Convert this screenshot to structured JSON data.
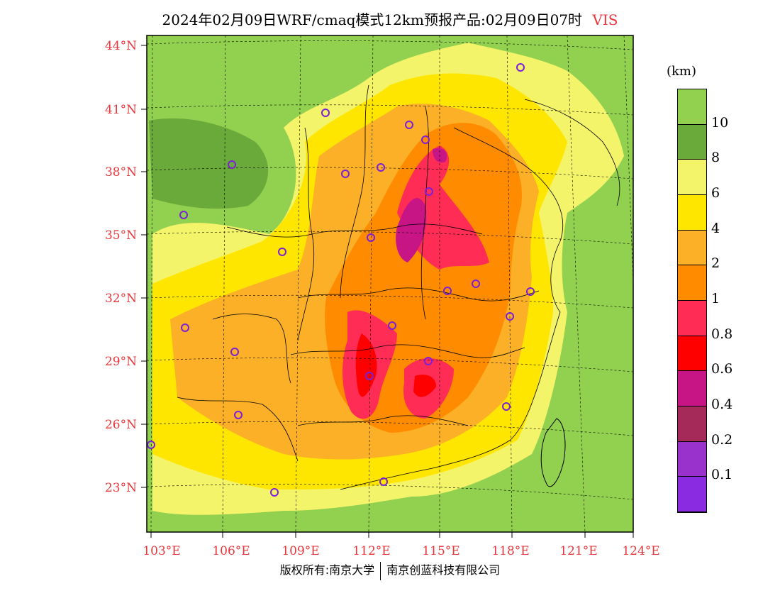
{
  "title": {
    "main": "2024年02月09日WRF/cmaq模式12km预报产品:02月09日07时",
    "variable": "VIS"
  },
  "axes": {
    "lat_labels": [
      "44°N",
      "41°N",
      "38°N",
      "35°N",
      "32°N",
      "29°N",
      "26°N",
      "23°N"
    ],
    "lon_labels": [
      "103°E",
      "106°E",
      "109°E",
      "112°E",
      "115°E",
      "118°E",
      "121°E",
      "124°E"
    ]
  },
  "legend": {
    "unit": "(km)",
    "levels": [
      {
        "label": "10",
        "color": "#92d050"
      },
      {
        "label": "8",
        "color": "#6aaa3a"
      },
      {
        "label": "6",
        "color": "#f4f46a"
      },
      {
        "label": "4",
        "color": "#ffe600"
      },
      {
        "label": "2",
        "color": "#fbb028"
      },
      {
        "label": "1",
        "color": "#ff8c00"
      },
      {
        "label": "0.8",
        "color": "#ff2d55"
      },
      {
        "label": "0.6",
        "color": "#ff0000"
      },
      {
        "label": "0.4",
        "color": "#c71585"
      },
      {
        "label": "0.2",
        "color": "#a52a5a"
      },
      {
        "label": "0.1",
        "color": "#9932cc"
      },
      {
        "label": "",
        "color": "#8a2be2"
      }
    ]
  },
  "footer": {
    "left": "版权所有:南京大学",
    "right": "南京创蓝科技有限公司"
  },
  "colors": {
    "ocean": "#92d050",
    "axis_text": "#e8363b",
    "marker": "#7b1fd8"
  }
}
